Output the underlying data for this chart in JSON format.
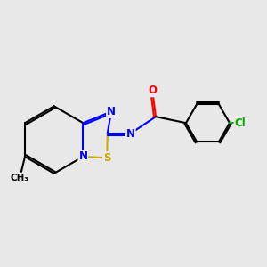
{
  "background_color": "#e8e8e8",
  "atom_colors": {
    "C": "#000000",
    "N": "#0000ff",
    "S": "#ccaa00",
    "O": "#ff0000",
    "Cl": "#00aa00"
  },
  "figsize": [
    3.0,
    3.0
  ],
  "dpi": 100
}
